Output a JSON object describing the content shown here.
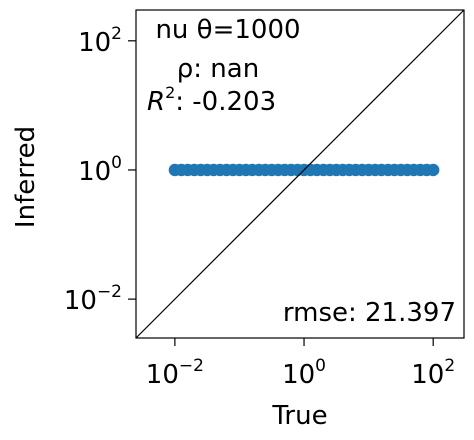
{
  "chart_data": {
    "type": "scatter",
    "title": "",
    "xlabel": "True",
    "ylabel": "Inferred",
    "xscale": "log",
    "yscale": "log",
    "xlim": [
      0.0025,
      300
    ],
    "ylim": [
      0.0025,
      300
    ],
    "x_ticks": [
      {
        "value": 0.01,
        "base": "10",
        "exp": "−2"
      },
      {
        "value": 1,
        "base": "10",
        "exp": "0"
      },
      {
        "value": 100,
        "base": "10",
        "exp": "2"
      }
    ],
    "y_ticks": [
      {
        "value": 0.01,
        "base": "10",
        "exp": "−2"
      },
      {
        "value": 1,
        "base": "10",
        "exp": "0"
      },
      {
        "value": 100,
        "base": "10",
        "exp": "2"
      }
    ],
    "series": [
      {
        "color": "#1f77b4",
        "x": [
          0.01,
          0.0126,
          0.0158,
          0.02,
          0.0251,
          0.0316,
          0.0398,
          0.0501,
          0.0631,
          0.0794,
          0.1,
          0.126,
          0.158,
          0.2,
          0.251,
          0.316,
          0.398,
          0.501,
          0.631,
          0.794,
          1,
          1.26,
          1.58,
          2,
          2.51,
          3.16,
          3.98,
          5.01,
          6.31,
          7.94,
          10,
          12.6,
          15.8,
          20,
          25.1,
          31.6,
          39.8,
          50.1,
          63.1,
          79.4,
          100
        ],
        "y_constant": 1
      }
    ],
    "identity_line": true,
    "grid": false,
    "legend": "none",
    "annotations": {
      "label_line": "nu θ=1000",
      "rho_line": "ρ: nan",
      "r2_symbol": "R",
      "r2_sup": "2",
      "r2_value": ": -0.203",
      "rmse_line": "rmse: 21.397"
    }
  }
}
